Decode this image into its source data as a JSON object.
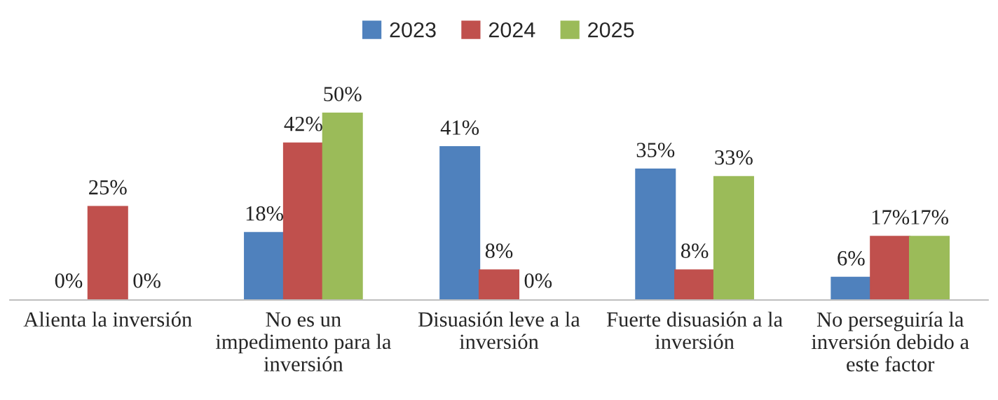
{
  "chart_data": {
    "type": "bar",
    "categories": [
      "Alienta la inversión",
      "No es un\nimpedimento para la\ninversión",
      "Disuasión leve a la\ninversión",
      "Fuerte disuasión a la\ninversión",
      "No perseguiría la\ninversión debido a\neste factor"
    ],
    "series": [
      {
        "name": "2023",
        "color": "#4f81bd",
        "values": [
          0,
          18,
          41,
          35,
          6
        ],
        "value_labels": [
          "0%",
          "18%",
          "41%",
          "35%",
          "6%"
        ]
      },
      {
        "name": "2024",
        "color": "#c0504d",
        "values": [
          25,
          42,
          8,
          8,
          17
        ],
        "value_labels": [
          "25%",
          "42%",
          "8%",
          "8%",
          "17%"
        ]
      },
      {
        "name": "2025",
        "color": "#9bbb59",
        "values": [
          0,
          50,
          0,
          33,
          17
        ],
        "value_labels": [
          "0%",
          "50%",
          "0%",
          "33%",
          "17%"
        ]
      }
    ],
    "legend": "top",
    "grid": false
  }
}
